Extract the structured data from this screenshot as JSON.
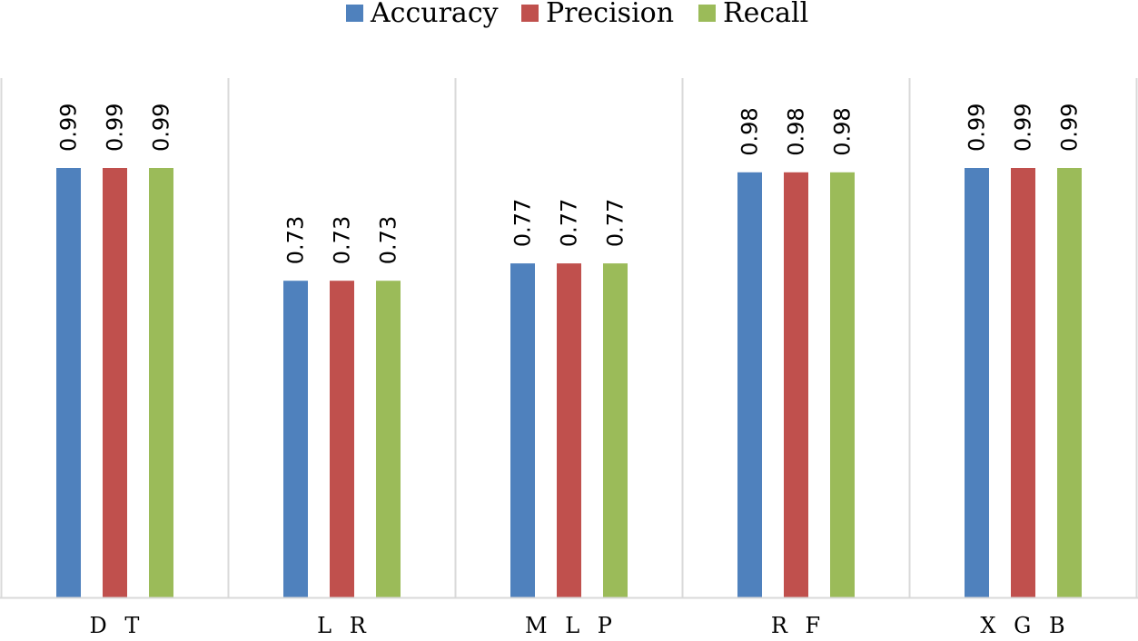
{
  "chart_data": {
    "type": "bar",
    "title": "",
    "xlabel": "",
    "ylabel": "",
    "ylim": [
      0,
      1.05
    ],
    "categories": [
      "D T",
      "L R",
      "M L P",
      "R F",
      "X G B"
    ],
    "series": [
      {
        "name": "Accuracy",
        "color": "#4F81BD",
        "values": [
          0.99,
          0.73,
          0.77,
          0.98,
          0.99
        ]
      },
      {
        "name": "Precision",
        "color": "#C0504D",
        "values": [
          0.99,
          0.73,
          0.77,
          0.98,
          0.99
        ]
      },
      {
        "name": "Recall",
        "color": "#9BBB59",
        "values": [
          0.99,
          0.73,
          0.77,
          0.98,
          0.99
        ]
      }
    ],
    "value_labels": [
      [
        "0.99",
        "0.73",
        "0.77",
        "0.98",
        "0.99"
      ],
      [
        "0.99",
        "0.73",
        "0.77",
        "0.98",
        "0.99"
      ],
      [
        "0.99",
        "0.73",
        "0.77",
        "0.98",
        "0.99"
      ]
    ],
    "legend_position": "top-center",
    "grid": "vertical-category-separators",
    "axis_color": "#D9D9D9"
  }
}
